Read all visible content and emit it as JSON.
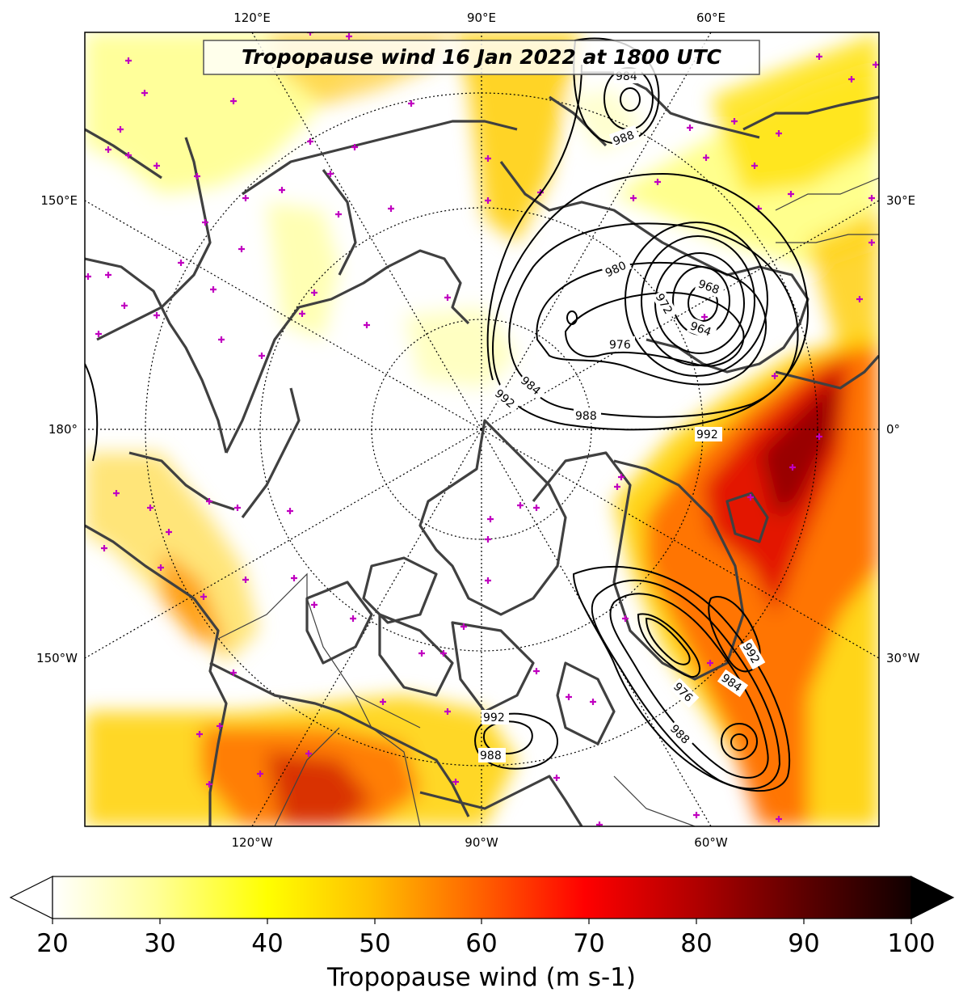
{
  "title": "Tropopause wind 16 Jan 2022 at 1800 UTC",
  "longitude_labels": {
    "top": [
      "120°E",
      "90°E",
      "60°E"
    ],
    "bottom": [
      "120°W",
      "90°W",
      "60°W"
    ],
    "left": [
      "150°E",
      "180°",
      "150°W"
    ],
    "right": [
      "30°E",
      "0°",
      "30°W"
    ]
  },
  "colorbar": {
    "label": "Tropopause wind (m s-1)",
    "ticks": [
      "20",
      "30",
      "40",
      "50",
      "60",
      "70",
      "80",
      "90",
      "100"
    ],
    "min": 20,
    "max": 100,
    "colormap": "hot_r",
    "extend": "both"
  },
  "contour_labels": {
    "upper_low": [
      "984",
      "988",
      "980",
      "976",
      "984",
      "992",
      "988",
      "992",
      "968",
      "972",
      "964"
    ],
    "lower_low": [
      "992",
      "984",
      "976",
      "988"
    ],
    "small_low": [
      "992",
      "988"
    ]
  },
  "colors": {
    "coast": "#404040",
    "marker": "#c000c0",
    "contour": "#000000"
  }
}
